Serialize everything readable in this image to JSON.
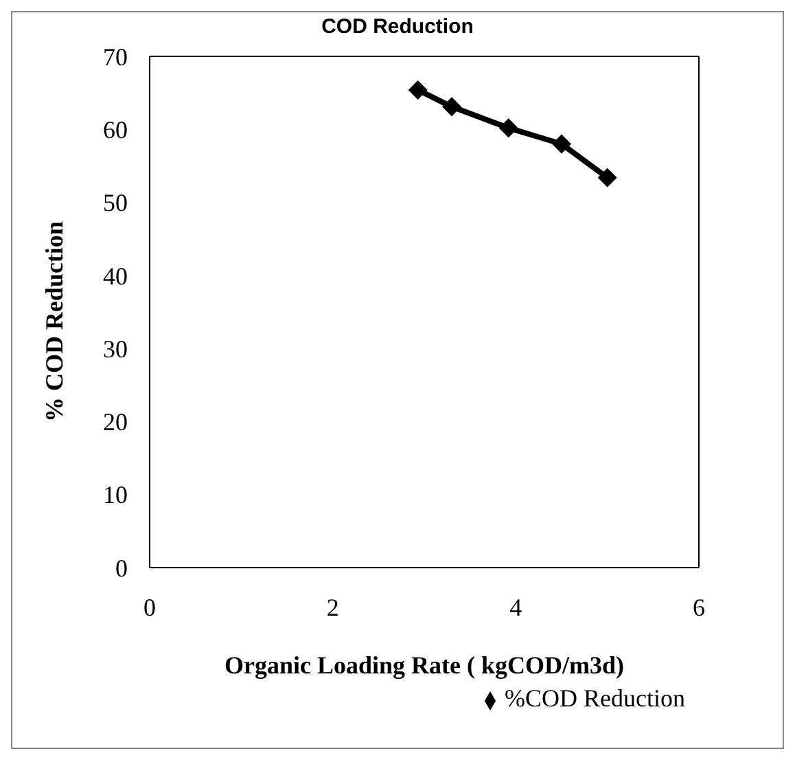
{
  "chart_data": {
    "type": "line",
    "title": "COD Reduction",
    "xlabel": "Organic Loading Rate ( kgCOD/m3d)",
    "ylabel": "% COD Reduction",
    "series": [
      {
        "name": "%COD Reduction",
        "color": "#000000",
        "x": [
          2.93,
          3.3,
          3.92,
          4.5,
          5.0
        ],
        "values": [
          65.4,
          63.1,
          60.2,
          58.0,
          53.4
        ]
      }
    ],
    "xlim": [
      0,
      6
    ],
    "xticks": [
      0,
      2,
      4,
      6
    ],
    "ylim": [
      0,
      70
    ],
    "yticks": [
      0,
      10,
      20,
      30,
      40,
      50,
      60,
      70
    ],
    "grid": false,
    "legend": "bottom right",
    "marker": "diamond",
    "line_style": "solid"
  }
}
